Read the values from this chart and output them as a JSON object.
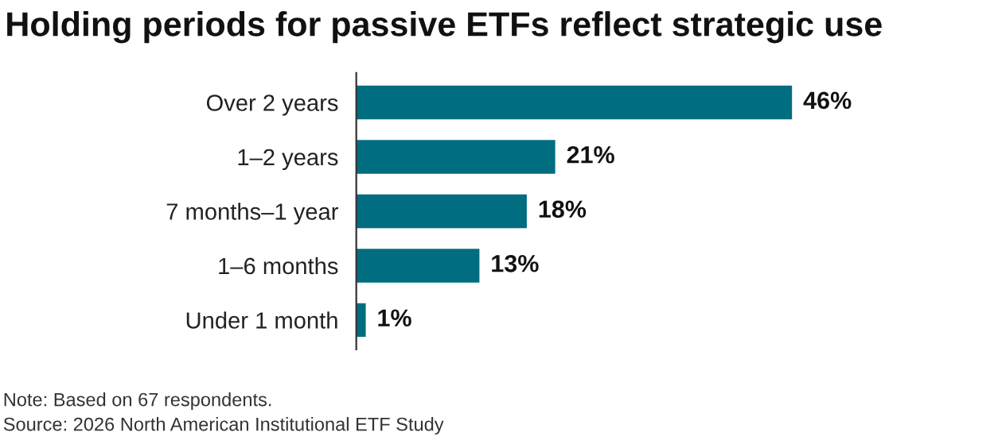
{
  "chart_data": {
    "type": "bar",
    "orientation": "horizontal",
    "title": "Holding periods for passive ETFs reflect strategic use",
    "categories": [
      "Over 2 years",
      "1–2 years",
      "7 months–1 year",
      "1–6 months",
      "Under 1 month"
    ],
    "values": [
      46,
      21,
      18,
      13,
      1
    ],
    "color": "#006d80",
    "data_labels": true,
    "value_labels": [
      "46%",
      "21%",
      "18%",
      "13%",
      "1%"
    ],
    "grid": false,
    "legend": false,
    "annotations": [
      "Note: Based on 67 respondents.",
      "Source: 2026 North American Institutional ETF Study"
    ]
  }
}
